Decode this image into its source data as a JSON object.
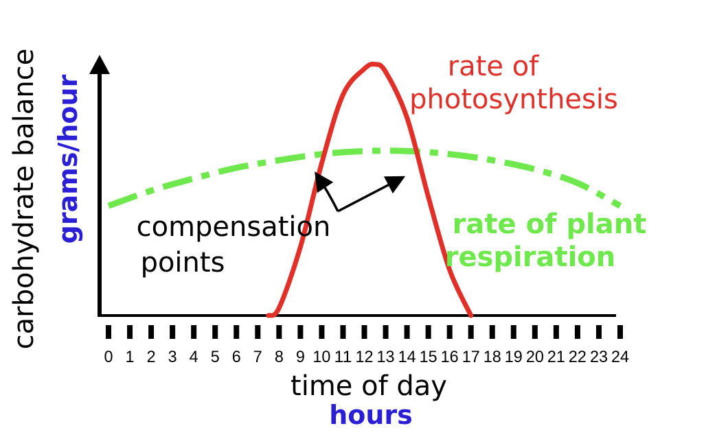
{
  "y_axis": {
    "label": "carbohydrate balance",
    "units": "grams/hour"
  },
  "x_axis": {
    "label": "time of day",
    "units": "hours",
    "ticks": [
      "0",
      "1",
      "2",
      "3",
      "4",
      "5",
      "6",
      "7",
      "8",
      "9",
      "10",
      "11",
      "12",
      "13",
      "14",
      "15",
      "16",
      "17",
      "18",
      "19",
      "20",
      "21",
      "22",
      "23",
      "24"
    ]
  },
  "annotations": {
    "photosynthesis_line1": "rate of",
    "photosynthesis_line2": "photosynthesis",
    "respiration_line1": "rate of plant",
    "respiration_line2": "respiration",
    "compensation_line1": "compensation",
    "compensation_line2": "points"
  },
  "colors": {
    "photosynthesis": "#e0302a",
    "respiration": "#6ee84c",
    "axis": "#000000",
    "units": "#2b1fd6"
  },
  "chart_data": {
    "type": "line",
    "x_range": [
      0,
      24
    ],
    "grid": false,
    "series": [
      {
        "name": "rate of photosynthesis",
        "x": [
          7.5,
          8,
          9,
          10,
          11,
          12,
          12.5,
          13,
          14,
          15,
          16,
          17
        ],
        "y": [
          0,
          0.05,
          0.45,
          1.0,
          1.45,
          1.62,
          1.65,
          1.6,
          1.3,
          0.78,
          0.3,
          0
        ],
        "style": "solid"
      },
      {
        "name": "rate of plant respiration",
        "x": [
          0,
          2,
          4,
          6,
          8,
          10,
          12,
          14,
          16,
          18,
          20,
          22,
          24
        ],
        "y": [
          0.72,
          0.82,
          0.9,
          0.97,
          1.02,
          1.06,
          1.08,
          1.08,
          1.06,
          1.02,
          0.96,
          0.87,
          0.72
        ],
        "style": "dash-dot"
      }
    ],
    "compensation_points": [
      10,
      15
    ]
  }
}
